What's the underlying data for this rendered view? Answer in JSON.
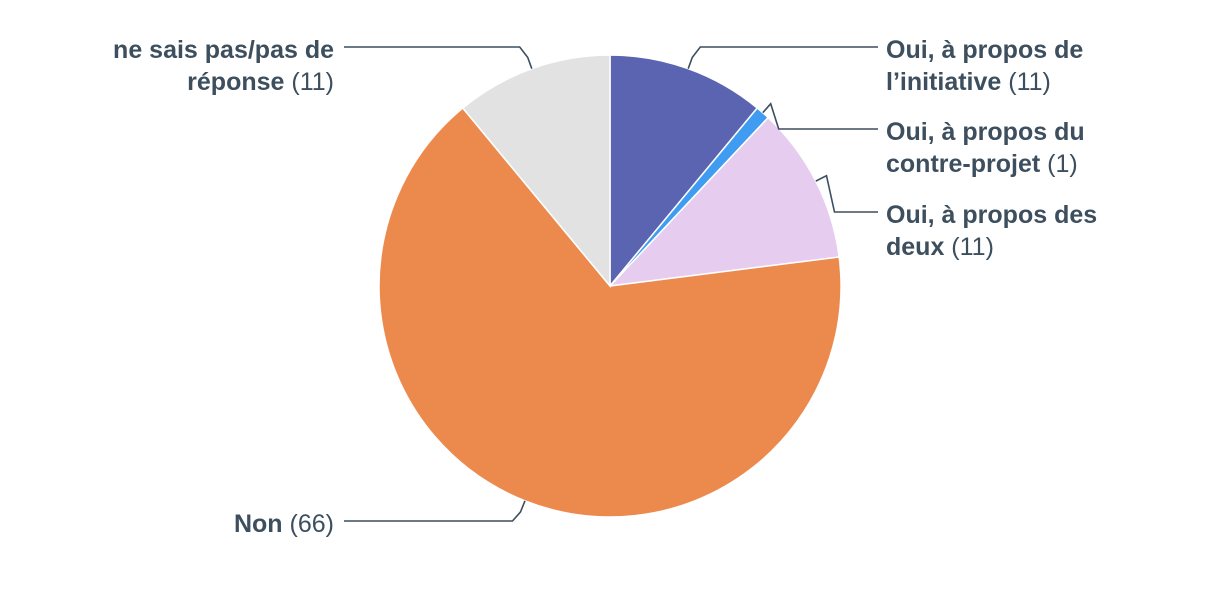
{
  "chart_data": {
    "type": "pie",
    "title": "",
    "slices": [
      {
        "label_lines": [
          "Oui, à propos de",
          "l’initiative"
        ],
        "count_text": "(11)",
        "value": 11,
        "color": "#5a64b1"
      },
      {
        "label_lines": [
          "Oui, à propos du",
          "contre-projet"
        ],
        "count_text": "(1)",
        "value": 1,
        "color": "#3f9cf0"
      },
      {
        "label_lines": [
          "Oui, à propos des",
          "deux"
        ],
        "count_text": "(11)",
        "value": 11,
        "color": "#e6cdef"
      },
      {
        "label_lines": [
          "Non"
        ],
        "count_text": "(66)",
        "value": 66,
        "color": "#ec8a4e"
      },
      {
        "label_lines": [
          "ne sais pas/pas de",
          "réponse"
        ],
        "count_text": "(11)",
        "value": 11,
        "color": "#e2e2e2"
      }
    ]
  }
}
